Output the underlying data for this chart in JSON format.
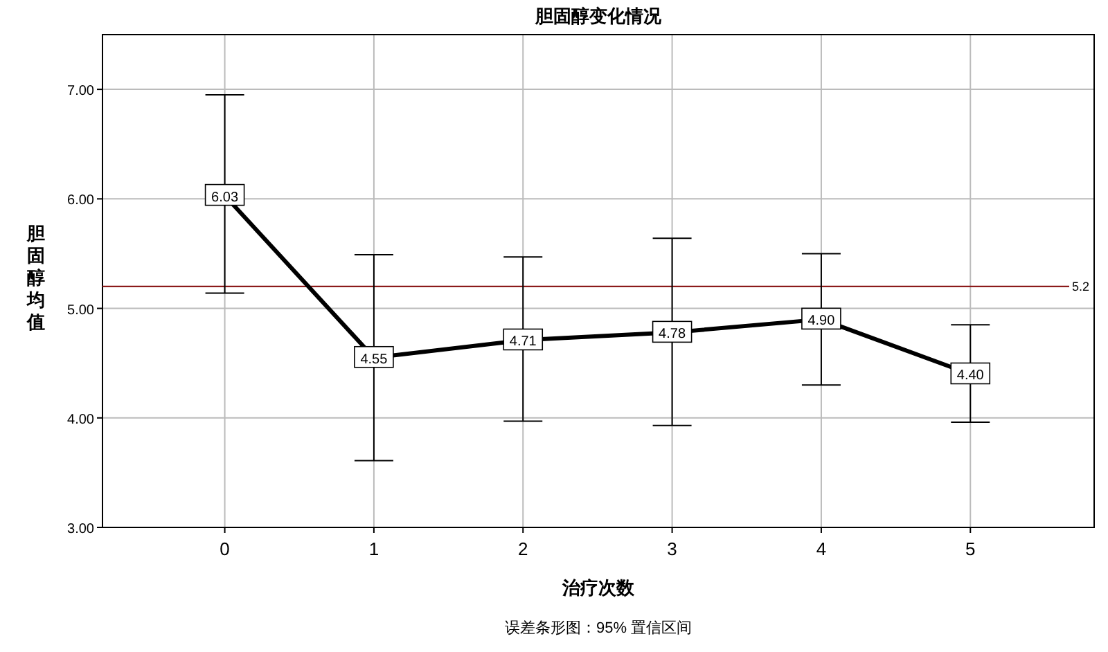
{
  "chart_data": {
    "type": "line",
    "title": "胆固醇变化情况",
    "xlabel": "治疗次数",
    "ylabel": "胆固醇均值",
    "categories": [
      "0",
      "1",
      "2",
      "3",
      "4",
      "5"
    ],
    "series": [
      {
        "color": "#000000",
        "values": [
          6.03,
          4.55,
          4.71,
          4.78,
          4.9,
          4.4
        ],
        "errors": [
          [
            5.14,
            6.95
          ],
          [
            3.61,
            5.49
          ],
          [
            3.97,
            5.47
          ],
          [
            3.93,
            5.64
          ],
          [
            4.3,
            5.5
          ],
          [
            3.96,
            4.85
          ]
        ],
        "value_labels": [
          "6.03",
          "4.55",
          "4.71",
          "4.78",
          "4.90",
          "4.40"
        ]
      }
    ],
    "ylim": [
      3,
      7.5
    ],
    "yticks": [
      {
        "value": 3,
        "label": "3.00"
      },
      {
        "value": 4,
        "label": "4.00"
      },
      {
        "value": 5,
        "label": "5.00"
      },
      {
        "value": 6,
        "label": "6.00"
      },
      {
        "value": 7,
        "label": "7.00"
      }
    ],
    "ref_lines": [
      {
        "axis": "y",
        "value": 5.2,
        "label": "5.2",
        "color": "#8b1a1a"
      }
    ],
    "grid": true,
    "marker": "square",
    "line_style": "solid",
    "annotations": [
      "误差条形图：95% 置信区间"
    ]
  }
}
